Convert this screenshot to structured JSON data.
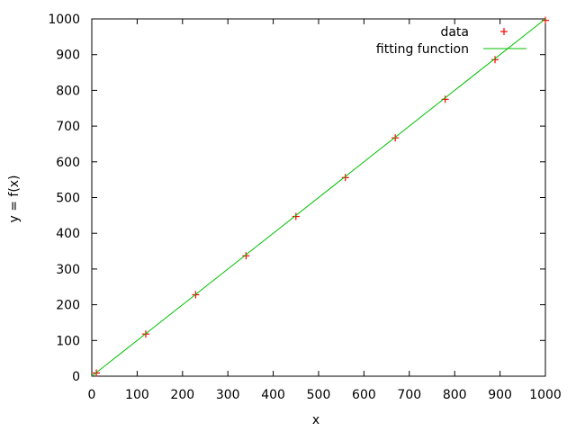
{
  "chart_data": {
    "type": "scatter",
    "title": "",
    "xlabel": "x",
    "ylabel": "y = f(x)",
    "xlim": [
      0,
      1000
    ],
    "ylim": [
      0,
      1000
    ],
    "xticks": [
      0,
      100,
      200,
      300,
      400,
      500,
      600,
      700,
      800,
      900,
      1000
    ],
    "yticks": [
      0,
      100,
      200,
      300,
      400,
      500,
      600,
      700,
      800,
      900,
      1000
    ],
    "grid": false,
    "legend_position": "top-right",
    "series": [
      {
        "name": "data",
        "kind": "points",
        "marker": "plus",
        "color": "#ff0000",
        "points": [
          {
            "x": 10,
            "y": 9
          },
          {
            "x": 119,
            "y": 118
          },
          {
            "x": 229,
            "y": 228
          },
          {
            "x": 340,
            "y": 337
          },
          {
            "x": 450,
            "y": 447
          },
          {
            "x": 559,
            "y": 556
          },
          {
            "x": 669,
            "y": 667
          },
          {
            "x": 779,
            "y": 775
          },
          {
            "x": 889,
            "y": 886
          },
          {
            "x": 1000,
            "y": 996
          }
        ]
      },
      {
        "name": "fitting function",
        "kind": "line",
        "color": "#00c000",
        "points": [
          {
            "x": 0,
            "y": 0
          },
          {
            "x": 1000,
            "y": 1000
          }
        ]
      }
    ]
  }
}
